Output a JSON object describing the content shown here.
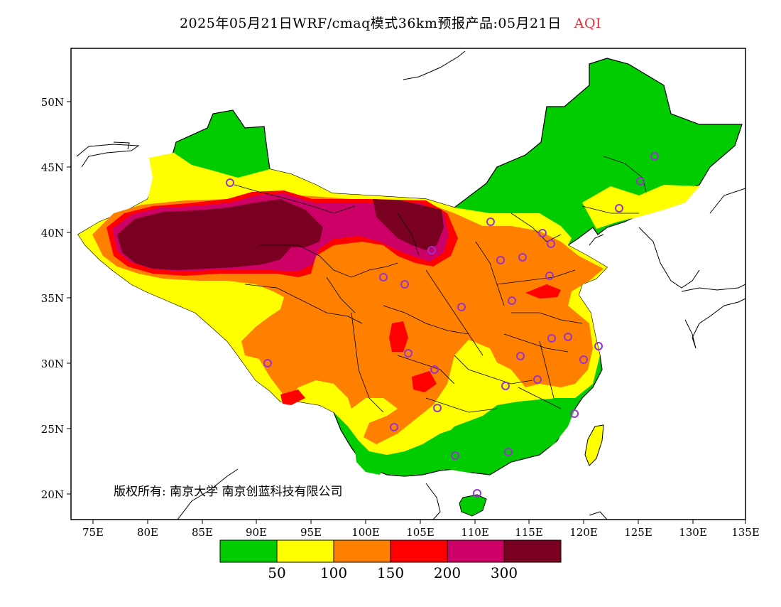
{
  "title": {
    "main": "2025年05月21日WRF/cmaq模式36km预报产品:05月21日",
    "variable": "AQI"
  },
  "axes": {
    "lat_labels": [
      "50N",
      "45N",
      "40N",
      "35N",
      "30N",
      "25N",
      "20N"
    ],
    "lon_labels": [
      "75E",
      "80E",
      "85E",
      "90E",
      "95E",
      "100E",
      "105E",
      "110E",
      "115E",
      "120E",
      "125E",
      "130E",
      "135E"
    ]
  },
  "copyright": "版权所有: 南京大学  南京创蓝科技有限公司",
  "legend": {
    "colors": [
      "#00cc00",
      "#ffff00",
      "#ff7f00",
      "#ff0000",
      "#cc0066",
      "#7a0022"
    ],
    "thresholds": [
      "50",
      "100",
      "150",
      "200",
      "300"
    ]
  },
  "colors": {
    "good": "#00cc00",
    "moderate": "#ffff00",
    "unhealthy_sensitive": "#ff7f00",
    "unhealthy": "#ff0000",
    "very_unhealthy": "#cc0066",
    "hazardous": "#7a0022",
    "station_marker": "#9933cc"
  }
}
